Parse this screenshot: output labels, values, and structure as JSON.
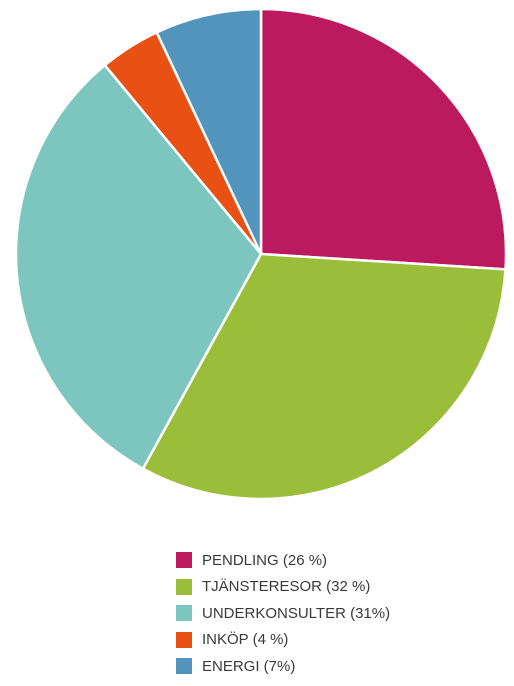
{
  "chart_data": {
    "type": "pie",
    "categories": [
      "PENDLING",
      "TJÄNSTERESOR",
      "UNDERKONSULTER",
      "INKÖP",
      "ENERGI"
    ],
    "values": [
      26,
      32,
      31,
      4,
      7
    ],
    "unit": "%",
    "colors": [
      "#BB1A5E",
      "#9ABE39",
      "#7CC6BF",
      "#E85014",
      "#5394BD"
    ],
    "start": "12 o'clock",
    "direction": "clockwise",
    "legend": {
      "placement": "bottom",
      "items": [
        {
          "label": "PENDLING (26 %)",
          "color": "#BB1A5E"
        },
        {
          "label": "TJÄNSTERESOR (32 %)",
          "color": "#9ABE39"
        },
        {
          "label": "UNDERKONSULTER (31%)",
          "color": "#7CC6BF"
        },
        {
          "label": "INKÖP (4 %)",
          "color": "#E85014"
        },
        {
          "label": "ENERGI (7%)",
          "color": "#5394BD"
        }
      ]
    }
  }
}
